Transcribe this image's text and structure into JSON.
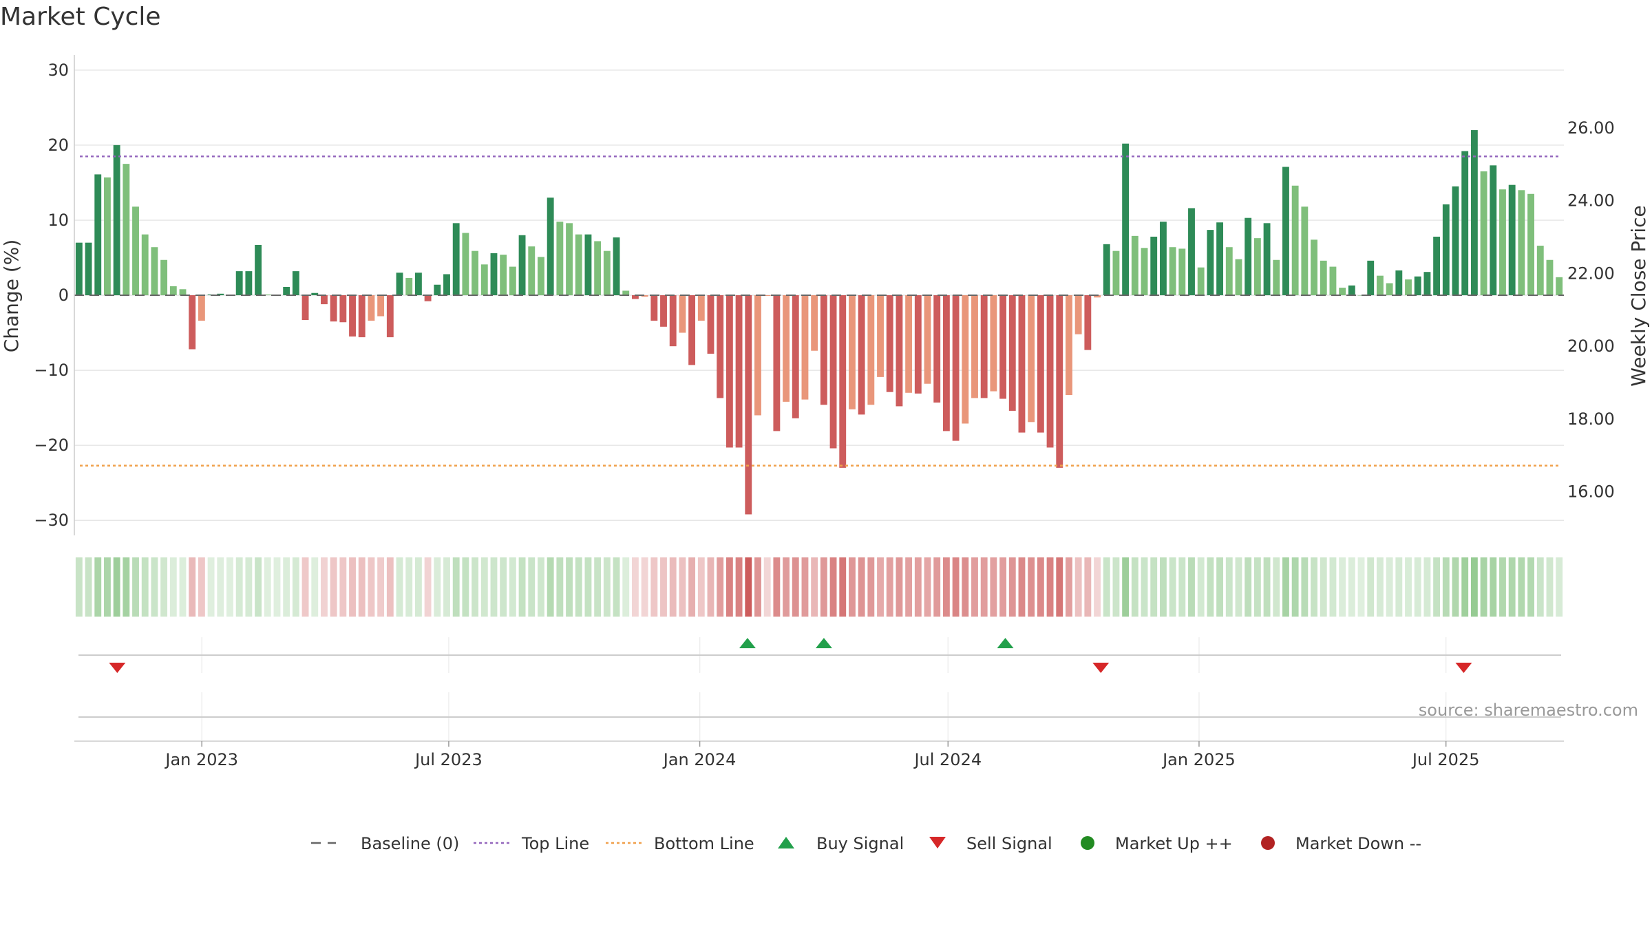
{
  "title": "Market Cycle",
  "source": "source: sharemaestro.com",
  "colors": {
    "up_strong": "#2e8b57",
    "up_weak": "#7fbf7b",
    "down_strong": "#cd5c5c",
    "down_weak": "#e9967a",
    "top_line": "#9467bd",
    "bottom_line": "#f0a04b",
    "baseline": "#666666",
    "buy": "#22a04b",
    "sell": "#d62728",
    "market_up": "#228b22",
    "market_down": "#b22222"
  },
  "chart_data": {
    "type": "bar",
    "y_left_label": "Change (%)",
    "y_right_label": "Weekly Close Price",
    "ylim": [
      -32,
      32
    ],
    "y_right_lim": [
      14.8,
      28.0
    ],
    "y_ticks": [
      -30,
      -20,
      -10,
      0,
      10,
      20,
      30
    ],
    "y_tick_labels": [
      "−30",
      "−20",
      "−10",
      "0",
      "10",
      "20",
      "30"
    ],
    "y_right_ticks": [
      16,
      18,
      20,
      22,
      24,
      26
    ],
    "y_right_tick_labels": [
      "16.00",
      "18.00",
      "20.00",
      "22.00",
      "24.00",
      "26.00"
    ],
    "x_start": "2022-10-03",
    "x_end": "2025-09-22",
    "x_ticks": [
      "2023-01-01",
      "2023-07-01",
      "2024-01-01",
      "2024-07-01",
      "2025-01-01",
      "2025-07-01"
    ],
    "x_tick_labels": [
      "Jan 2023",
      "Jul 2023",
      "Jan 2024",
      "Jul 2024",
      "Jan 2025",
      "Jul 2025"
    ],
    "top_line": 18.5,
    "bottom_line": -22.7,
    "values": [
      7,
      7,
      16.1,
      15.7,
      20,
      17.5,
      11.8,
      8.1,
      6.4,
      4.7,
      1.2,
      0.8,
      -7.2,
      -3.4,
      0.1,
      0.2,
      0,
      3.2,
      3.2,
      6.7,
      0.1,
      0,
      1.1,
      3.2,
      -3.3,
      0.3,
      -1.2,
      -3.5,
      -3.6,
      -5.5,
      -5.6,
      -3.4,
      -2.8,
      -5.6,
      3,
      2.3,
      3,
      -0.8,
      1.4,
      2.8,
      9.6,
      8.3,
      5.9,
      4.1,
      5.6,
      5.4,
      3.8,
      8,
      6.5,
      5.1,
      13,
      9.8,
      9.6,
      8.1,
      8.1,
      7.2,
      5.9,
      7.7,
      0.6,
      -0.5,
      -0.2,
      -3.4,
      -4.2,
      -6.8,
      -5,
      -9.3,
      -3.4,
      -7.8,
      -13.7,
      -20.3,
      -20.3,
      -29.2,
      -16,
      -0.1,
      -18.1,
      -14.2,
      -16.4,
      -13.9,
      -7.4,
      -14.6,
      -20.4,
      -23,
      -15.2,
      -15.9,
      -14.6,
      -10.9,
      -12.9,
      -14.8,
      -13,
      -13.1,
      -11.8,
      -14.3,
      -18.1,
      -19.4,
      -17.1,
      -13.7,
      -13.7,
      -12.8,
      -13.8,
      -15.4,
      -18.3,
      -16.9,
      -18.3,
      -20.3,
      -23,
      -13.3,
      -5.2,
      -7.3,
      -0.3,
      6.8,
      5.9,
      20.2,
      7.9,
      6.3,
      7.8,
      9.8,
      6.4,
      6.2,
      11.6,
      3.7,
      8.7,
      9.7,
      6.4,
      4.8,
      10.3,
      7.6,
      9.6,
      4.7,
      17.1,
      14.6,
      11.8,
      7.4,
      4.6,
      3.8,
      1,
      1.3,
      0,
      4.6,
      2.6,
      1.6,
      3.3,
      2.1,
      2.5,
      3.1,
      7.8,
      12.1,
      14.5,
      19.2,
      22,
      16.5,
      17.3,
      14.1,
      14.7,
      14,
      13.5,
      6.6,
      4.7,
      2.4
    ],
    "buy_signal_dates": [
      "2024-02-05",
      "2024-04-01",
      "2024-08-12"
    ],
    "sell_signal_dates": [
      "2022-10-31",
      "2024-10-21",
      "2025-07-14"
    ],
    "legend": [
      "Baseline (0)",
      "Top Line",
      "Bottom Line",
      "Buy Signal",
      "Sell Signal",
      "Market Up ++",
      "Market Down --"
    ]
  }
}
